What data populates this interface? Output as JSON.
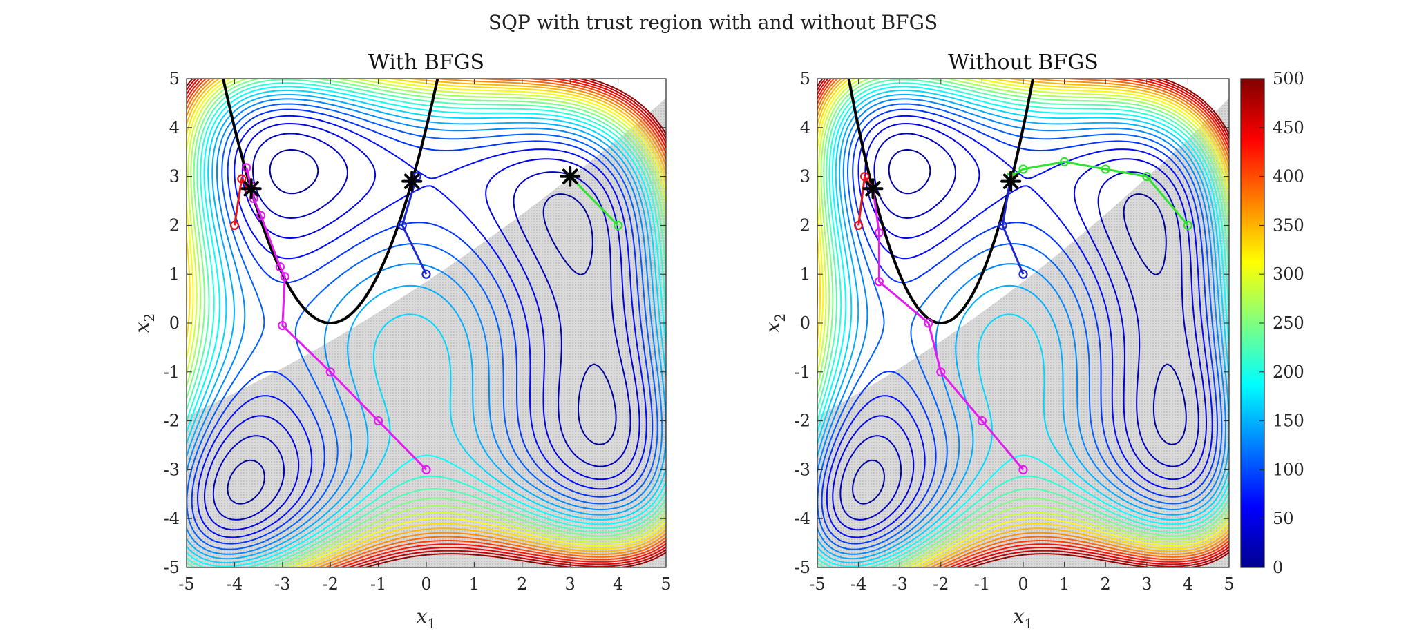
{
  "figure": {
    "suptitle": "SQP with trust region with and without BFGS"
  },
  "chart_data": [
    {
      "type": "line",
      "title": "With BFGS",
      "xlabel": "x1",
      "ylabel": "x2",
      "xlim": [
        -5,
        5
      ],
      "ylim": [
        -5,
        5
      ],
      "xticks": [
        -5,
        -4,
        -3,
        -2,
        -1,
        0,
        1,
        2,
        3,
        4,
        5
      ],
      "yticks": [
        -5,
        -4,
        -3,
        -2,
        -1,
        0,
        1,
        2,
        3,
        4,
        5
      ],
      "background": "contour of Himmelblau-type objective, levels 0–500, infeasible region shaded gray",
      "constraint_curve": "parabola x2 = (x1 + 2)^2",
      "series": [
        {
          "color": "#e8141e",
          "points": [
            [
              -4,
              2
            ],
            [
              -3.85,
              2.95
            ],
            [
              -3.7,
              2.75
            ]
          ]
        },
        {
          "color": "#e31cf2",
          "points": [
            [
              0,
              -3
            ],
            [
              -1,
              -2
            ],
            [
              -2,
              -1
            ],
            [
              -3,
              -0.05
            ],
            [
              -2.95,
              0.95
            ],
            [
              -3.05,
              1.15
            ],
            [
              -3.45,
              2.2
            ],
            [
              -3.6,
              2.55
            ],
            [
              -3.75,
              3.18
            ],
            [
              -3.65,
              2.8
            ]
          ]
        },
        {
          "color": "#1c28d4",
          "points": [
            [
              0,
              1
            ],
            [
              -0.5,
              2
            ],
            [
              -0.2,
              3
            ],
            [
              -0.3,
              2.9
            ]
          ]
        },
        {
          "color": "#2ee22e",
          "points": [
            [
              4,
              2
            ],
            [
              3,
              3
            ]
          ]
        }
      ],
      "minima_markers": [
        [
          -3.65,
          2.75
        ],
        [
          -0.3,
          2.9
        ],
        [
          3,
          3
        ]
      ]
    },
    {
      "type": "line",
      "title": "Without BFGS",
      "xlabel": "x1",
      "ylabel": "x2",
      "xlim": [
        -5,
        5
      ],
      "ylim": [
        -5,
        5
      ],
      "xticks": [
        -5,
        -4,
        -3,
        -2,
        -1,
        0,
        1,
        2,
        3,
        4,
        5
      ],
      "yticks": [
        -5,
        -4,
        -3,
        -2,
        -1,
        0,
        1,
        2,
        3,
        4,
        5
      ],
      "background": "contour of Himmelblau-type objective, levels 0–500, infeasible region shaded gray",
      "constraint_curve": "parabola x2 = (x1 + 2)^2",
      "series": [
        {
          "color": "#e8141e",
          "points": [
            [
              -4,
              2
            ],
            [
              -3.85,
              3
            ],
            [
              -3.65,
              2.75
            ]
          ]
        },
        {
          "color": "#e31cf2",
          "points": [
            [
              0,
              -3
            ],
            [
              -1,
              -2
            ],
            [
              -2,
              -1
            ],
            [
              -2.3,
              0
            ],
            [
              -3.5,
              0.85
            ],
            [
              -3.5,
              1.85
            ],
            [
              -3.65,
              2.75
            ]
          ]
        },
        {
          "color": "#1c28d4",
          "points": [
            [
              0,
              1
            ],
            [
              -0.5,
              2
            ],
            [
              -0.3,
              3
            ],
            [
              -0.3,
              2.9
            ]
          ]
        },
        {
          "color": "#2ee22e",
          "points": [
            [
              4,
              2
            ],
            [
              3,
              3
            ],
            [
              2,
              3.15
            ],
            [
              1,
              3.3
            ],
            [
              0,
              3.15
            ],
            [
              -0.3,
              3
            ],
            [
              -0.3,
              2.9
            ]
          ]
        }
      ],
      "minima_markers": [
        [
          -3.65,
          2.75
        ],
        [
          -0.3,
          2.9
        ]
      ]
    }
  ],
  "colorbar": {
    "ticks": [
      "500",
      "450",
      "400",
      "350",
      "300",
      "250",
      "200",
      "150",
      "100",
      "50",
      "0"
    ]
  },
  "colors": {
    "contour_scale": [
      "#00008f",
      "#0000ff",
      "#00ffff",
      "#ffff00",
      "#ff0000",
      "#800000"
    ],
    "constraint": "#000000",
    "infeasible_shade": "#d0d0d0"
  }
}
